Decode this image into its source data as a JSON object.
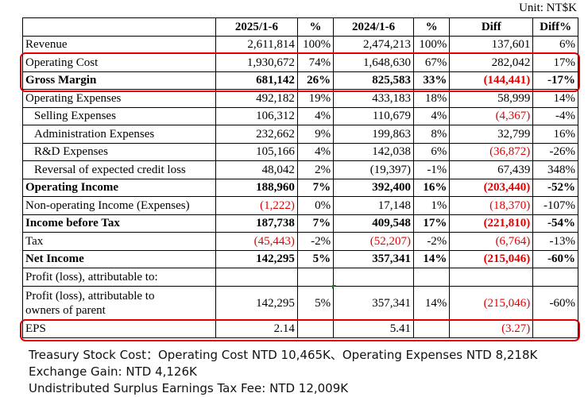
{
  "unit": "Unit: NT$K",
  "headers": [
    "",
    "2025/1-6",
    "%",
    "2024/1-6",
    "%",
    "Diff",
    "Diff%"
  ],
  "rows": [
    {
      "label": "Revenue",
      "a": "2,611,814",
      "pa": "100%",
      "b": "2,474,213",
      "pb": "100%",
      "d": "137,601",
      "dp": "6%"
    },
    {
      "label": "Operating Cost",
      "a": "1,930,672",
      "pa": "74%",
      "b": "1,648,630",
      "pb": "67%",
      "d": "282,042",
      "dp": "17%"
    },
    {
      "label": "Gross Margin",
      "a": "681,142",
      "pa": "26%",
      "b": "825,583",
      "pb": "33%",
      "d": "(144,441)",
      "dp": "-17%"
    },
    {
      "label": "Operating Expenses",
      "a": "492,182",
      "pa": "19%",
      "b": "433,183",
      "pb": "18%",
      "d": "58,999",
      "dp": "14%"
    },
    {
      "label": "Selling Expenses",
      "a": "106,312",
      "pa": "4%",
      "b": "110,679",
      "pb": "4%",
      "d": "(4,367)",
      "dp": "-4%"
    },
    {
      "label": "Administration Expenses",
      "a": "232,662",
      "pa": "9%",
      "b": "199,863",
      "pb": "8%",
      "d": "32,799",
      "dp": "16%"
    },
    {
      "label": "R&D Expenses",
      "a": "105,166",
      "pa": "4%",
      "b": "142,038",
      "pb": "6%",
      "d": "(36,872)",
      "dp": "-26%"
    },
    {
      "label": "Reversal of expected credit loss",
      "a": "48,042",
      "pa": "2%",
      "b": "(19,397)",
      "pb": "-1%",
      "d": "67,439",
      "dp": "348%"
    },
    {
      "label": "Operating Income",
      "a": "188,960",
      "pa": "7%",
      "b": "392,400",
      "pb": "16%",
      "d": "(203,440)",
      "dp": "-52%"
    },
    {
      "label": "Non-operating Income (Expenses)",
      "a": "(1,222)",
      "pa": "0%",
      "b": "17,148",
      "pb": "1%",
      "d": "(18,370)",
      "dp": "-107%"
    },
    {
      "label": "Income before Tax",
      "a": "187,738",
      "pa": "7%",
      "b": "409,548",
      "pb": "17%",
      "d": "(221,810)",
      "dp": "-54%"
    },
    {
      "label": "Tax",
      "a": "(45,443)",
      "pa": "-2%",
      "b": "(52,207)",
      "pb": "-2%",
      "d": "(6,764)",
      "dp": "-13%"
    },
    {
      "label": "Net Income",
      "a": "142,295",
      "pa": "5%",
      "b": "357,341",
      "pb": "14%",
      "d": "(215,046)",
      "dp": "-60%"
    },
    {
      "label": "Profit (loss), attributable to:",
      "a": "",
      "pa": "",
      "b": "",
      "pb": "",
      "d": "",
      "dp": ""
    },
    {
      "label_line1": "Profit (loss), attributable to",
      "label_line2": "owners of parent",
      "a": "142,295",
      "pa": "5%",
      "b": "357,341",
      "pb": "14%",
      "d": "(215,046)",
      "dp": "-60%"
    },
    {
      "label": "EPS",
      "a": "2.14",
      "pa": "",
      "b": "5.41",
      "pb": "",
      "d": "(3.27)",
      "dp": ""
    }
  ],
  "notes": {
    "line1": "Treasury Stock Cost：Operating Cost NTD 10,465K、Operating Expenses NTD 8,218K",
    "line2": "Exchange Gain: NTD 4,126K",
    "line3": "Undistributed Surplus Earnings Tax Fee: NTD 12,009K"
  },
  "colors": {
    "highlight": "#e00000",
    "negative": "#e00000"
  }
}
